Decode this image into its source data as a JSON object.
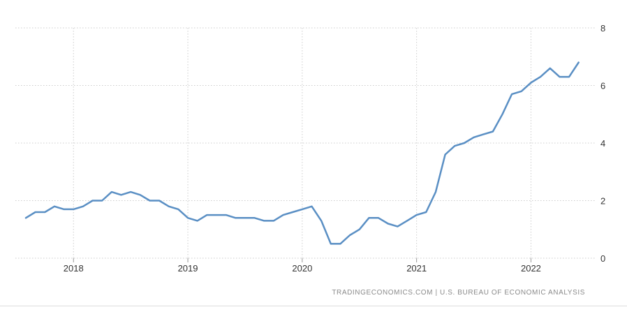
{
  "source_text": "TRADINGECONOMICS.COM  |  U.S. BUREAU OF ECONOMIC ANALYSIS",
  "colors": {
    "line": "#5a8fc4",
    "grid": "#cccccc",
    "tick_text": "#333333"
  },
  "chart_data": {
    "type": "line",
    "title": "",
    "xlabel": "",
    "ylabel": "",
    "ylim": [
      0,
      8
    ],
    "y_ticks": [
      0,
      2,
      4,
      6,
      8
    ],
    "x_tick_labels": [
      "2018",
      "2019",
      "2020",
      "2021",
      "2022"
    ],
    "x_tick_dates": [
      "2018-01",
      "2019-01",
      "2020-01",
      "2021-01",
      "2022-01"
    ],
    "x_range": [
      "2017-08",
      "2022-06"
    ],
    "grid": true,
    "y_axis_position": "right",
    "series": [
      {
        "x": [
          "2017-08",
          "2017-09",
          "2017-10",
          "2017-11",
          "2017-12",
          "2018-01",
          "2018-02",
          "2018-03",
          "2018-04",
          "2018-05",
          "2018-06",
          "2018-07",
          "2018-08",
          "2018-09",
          "2018-10",
          "2018-11",
          "2018-12",
          "2019-01",
          "2019-02",
          "2019-03",
          "2019-04",
          "2019-05",
          "2019-06",
          "2019-07",
          "2019-08",
          "2019-09",
          "2019-10",
          "2019-11",
          "2019-12",
          "2020-01",
          "2020-02",
          "2020-03",
          "2020-04",
          "2020-05",
          "2020-06",
          "2020-07",
          "2020-08",
          "2020-09",
          "2020-10",
          "2020-11",
          "2020-12",
          "2021-01",
          "2021-02",
          "2021-03",
          "2021-04",
          "2021-05",
          "2021-06",
          "2021-07",
          "2021-08",
          "2021-09",
          "2021-10",
          "2021-11",
          "2021-12",
          "2022-01",
          "2022-02",
          "2022-03",
          "2022-04",
          "2022-05",
          "2022-06"
        ],
        "values": [
          1.4,
          1.6,
          1.6,
          1.8,
          1.7,
          1.7,
          1.8,
          2.0,
          2.0,
          2.3,
          2.2,
          2.3,
          2.2,
          2.0,
          2.0,
          1.8,
          1.7,
          1.4,
          1.3,
          1.5,
          1.5,
          1.5,
          1.4,
          1.4,
          1.4,
          1.3,
          1.3,
          1.5,
          1.6,
          1.7,
          1.8,
          1.3,
          0.5,
          0.5,
          0.8,
          1.0,
          1.4,
          1.4,
          1.2,
          1.1,
          1.3,
          1.5,
          1.6,
          2.3,
          3.6,
          3.9,
          4.0,
          4.2,
          4.3,
          4.4,
          5.0,
          5.7,
          5.8,
          6.1,
          6.3,
          6.6,
          6.3,
          6.3,
          6.8
        ]
      }
    ]
  }
}
